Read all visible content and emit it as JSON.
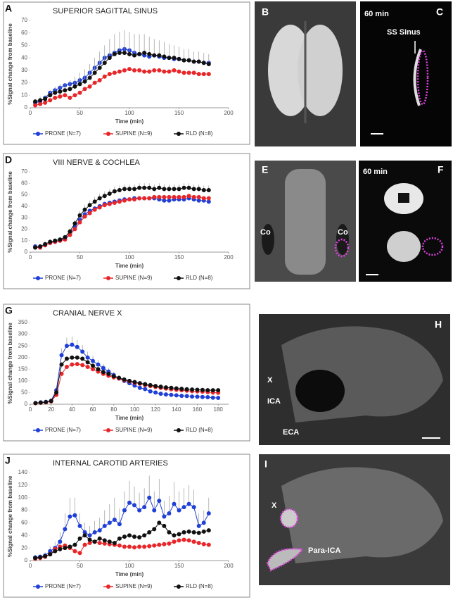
{
  "chart_data": [
    {
      "type": "line",
      "panel": "A",
      "title": "SUPERIOR SAGITTAL SINUS",
      "x_label": "Time (min)",
      "y_label": "%Signal change from baseline",
      "xlim": [
        0,
        200
      ],
      "xticks": [
        0,
        50,
        100,
        150,
        200
      ],
      "ylim": [
        0,
        70
      ],
      "yticks": [
        0,
        10,
        20,
        30,
        40,
        50,
        60,
        70
      ],
      "grid": false,
      "x": [
        5,
        10,
        15,
        20,
        25,
        30,
        35,
        40,
        45,
        50,
        55,
        60,
        65,
        70,
        75,
        80,
        85,
        90,
        95,
        100,
        105,
        110,
        115,
        120,
        125,
        130,
        135,
        140,
        145,
        150,
        155,
        160,
        165,
        170,
        175,
        180
      ],
      "series": [
        {
          "name": "PRONE (N=7)",
          "color": "#1f3fd6",
          "values": [
            4,
            5,
            8,
            12,
            14,
            16,
            18,
            19,
            20,
            22,
            24,
            28,
            32,
            36,
            40,
            42,
            44,
            46,
            47,
            46,
            44,
            43,
            42,
            41,
            42,
            41,
            40,
            40,
            39,
            39,
            38,
            38,
            37,
            37,
            36,
            36
          ]
        },
        {
          "name": "SUPINE (N=9)",
          "color": "#e8262a",
          "values": [
            2,
            3,
            4,
            6,
            8,
            9,
            10,
            8,
            10,
            12,
            15,
            17,
            20,
            22,
            25,
            27,
            28,
            29,
            30,
            31,
            30,
            30,
            29,
            29,
            30,
            30,
            29,
            29,
            30,
            29,
            28,
            28,
            28,
            27,
            27,
            27
          ]
        },
        {
          "name": "RLD (N=8)",
          "color": "#111111",
          "values": [
            5,
            6,
            7,
            10,
            12,
            13,
            14,
            15,
            17,
            19,
            21,
            24,
            28,
            32,
            36,
            40,
            43,
            44,
            44,
            43,
            42,
            43,
            44,
            43,
            42,
            42,
            41,
            40,
            40,
            39,
            38,
            38,
            37,
            37,
            36,
            35
          ],
          "errors": [
            2,
            3,
            3,
            4,
            5,
            6,
            6,
            7,
            8,
            9,
            10,
            11,
            12,
            13,
            14,
            15,
            16,
            17,
            18,
            18,
            17,
            16,
            15,
            14,
            13,
            12,
            12,
            11,
            10,
            10,
            9,
            9,
            8,
            8,
            8,
            8
          ]
        }
      ]
    },
    {
      "type": "line",
      "panel": "D",
      "title": "VIII NERVE & COCHLEA",
      "x_label": "Time (min)",
      "y_label": "%Signal change from baseline",
      "xlim": [
        0,
        200
      ],
      "xticks": [
        0,
        50,
        100,
        150,
        200
      ],
      "ylim": [
        0,
        70
      ],
      "yticks": [
        0,
        10,
        20,
        30,
        40,
        50,
        60,
        70
      ],
      "grid": false,
      "x": [
        5,
        10,
        15,
        20,
        25,
        30,
        35,
        40,
        45,
        50,
        55,
        60,
        65,
        70,
        75,
        80,
        85,
        90,
        95,
        100,
        105,
        110,
        115,
        120,
        125,
        130,
        135,
        140,
        145,
        150,
        155,
        160,
        165,
        170,
        175,
        180
      ],
      "series": [
        {
          "name": "PRONE (N=7)",
          "color": "#1f3fd6",
          "values": [
            5,
            4,
            6,
            8,
            9,
            10,
            12,
            16,
            22,
            28,
            33,
            36,
            38,
            40,
            42,
            43,
            44,
            45,
            46,
            46,
            47,
            47,
            47,
            47,
            47,
            46,
            45,
            45,
            46,
            46,
            46,
            47,
            46,
            45,
            45,
            44
          ]
        },
        {
          "name": "SUPINE (N=9)",
          "color": "#e8262a",
          "values": [
            4,
            4,
            6,
            8,
            9,
            10,
            11,
            15,
            20,
            26,
            31,
            34,
            37,
            39,
            41,
            42,
            43,
            44,
            45,
            46,
            46,
            47,
            47,
            47,
            48,
            48,
            48,
            48,
            48,
            48,
            48,
            49,
            48,
            48,
            47,
            47
          ]
        },
        {
          "name": "RLD (N=8)",
          "color": "#111111",
          "values": [
            4,
            5,
            7,
            9,
            10,
            11,
            13,
            18,
            25,
            32,
            37,
            41,
            44,
            47,
            49,
            51,
            53,
            54,
            55,
            55,
            55,
            56,
            56,
            56,
            55,
            56,
            55,
            55,
            55,
            55,
            56,
            56,
            55,
            55,
            54,
            54
          ],
          "errors": [
            1,
            1,
            1,
            2,
            2,
            2,
            2,
            3,
            3,
            4,
            4,
            4,
            4,
            4,
            4,
            4,
            4,
            4,
            4,
            4,
            4,
            4,
            4,
            4,
            4,
            4,
            4,
            4,
            4,
            4,
            4,
            4,
            4,
            4,
            4,
            4
          ]
        }
      ]
    },
    {
      "type": "line",
      "panel": "G",
      "title": "CRANIAL NERVE X",
      "x_label": "Time (min)",
      "y_label": "%Signal change from baseline",
      "xlim": [
        0,
        190
      ],
      "xticks": [
        0,
        20,
        40,
        60,
        80,
        100,
        120,
        140,
        160,
        180
      ],
      "ylim": [
        0,
        350
      ],
      "yticks": [
        0,
        50,
        100,
        150,
        200,
        250,
        300,
        350
      ],
      "grid": false,
      "x": [
        5,
        10,
        15,
        20,
        25,
        30,
        35,
        40,
        45,
        50,
        55,
        60,
        65,
        70,
        75,
        80,
        85,
        90,
        95,
        100,
        105,
        110,
        115,
        120,
        125,
        130,
        135,
        140,
        145,
        150,
        155,
        160,
        165,
        170,
        175,
        180
      ],
      "series": [
        {
          "name": "PRONE (N=7)",
          "color": "#1f3fd6",
          "values": [
            5,
            8,
            10,
            15,
            60,
            210,
            250,
            255,
            245,
            225,
            200,
            185,
            170,
            155,
            140,
            125,
            110,
            100,
            90,
            80,
            70,
            65,
            55,
            50,
            45,
            42,
            40,
            38,
            36,
            35,
            33,
            32,
            31,
            30,
            28,
            27
          ],
          "errors": [
            3,
            4,
            5,
            8,
            15,
            30,
            35,
            35,
            30,
            28,
            25,
            22,
            20,
            18,
            16,
            14,
            12,
            11,
            10,
            9,
            8,
            8,
            7,
            7,
            6,
            6,
            6,
            5,
            5,
            5,
            5,
            5,
            5,
            5,
            5,
            5
          ]
        },
        {
          "name": "SUPINE (N=9)",
          "color": "#e8262a",
          "values": [
            4,
            6,
            8,
            12,
            40,
            130,
            160,
            170,
            172,
            168,
            160,
            150,
            140,
            130,
            122,
            115,
            110,
            103,
            98,
            92,
            88,
            82,
            78,
            74,
            70,
            67,
            64,
            62,
            60,
            58,
            56,
            55,
            54,
            52,
            50,
            49
          ]
        },
        {
          "name": "RLD (N=8)",
          "color": "#111111",
          "values": [
            5,
            7,
            9,
            14,
            50,
            170,
            195,
            200,
            200,
            195,
            180,
            165,
            150,
            138,
            130,
            120,
            113,
            106,
            100,
            95,
            90,
            86,
            82,
            78,
            75,
            72,
            70,
            68,
            66,
            64,
            63,
            62,
            61,
            60,
            60,
            60
          ]
        }
      ]
    },
    {
      "type": "line",
      "panel": "J",
      "title": "INTERNAL CAROTID ARTERIES",
      "x_label": "Time (min)",
      "y_label": "%Signal change from baseline",
      "xlim": [
        0,
        200
      ],
      "xticks": [
        0,
        50,
        100,
        150,
        200
      ],
      "ylim": [
        0,
        140
      ],
      "yticks": [
        0,
        20,
        40,
        60,
        80,
        100,
        120,
        140
      ],
      "grid": false,
      "x": [
        5,
        10,
        15,
        20,
        25,
        30,
        35,
        40,
        45,
        50,
        55,
        60,
        65,
        70,
        75,
        80,
        85,
        90,
        95,
        100,
        105,
        110,
        115,
        120,
        125,
        130,
        135,
        140,
        145,
        150,
        155,
        160,
        165,
        170,
        175,
        180
      ],
      "series": [
        {
          "name": "PRONE (N=7)",
          "color": "#1f3fd6",
          "values": [
            5,
            6,
            8,
            15,
            20,
            30,
            50,
            70,
            72,
            55,
            45,
            40,
            45,
            48,
            55,
            60,
            65,
            58,
            80,
            92,
            88,
            80,
            85,
            100,
            80,
            95,
            70,
            75,
            90,
            80,
            85,
            90,
            85,
            55,
            60,
            75
          ],
          "errors": [
            3,
            4,
            5,
            8,
            10,
            15,
            25,
            30,
            28,
            20,
            15,
            15,
            18,
            20,
            25,
            30,
            35,
            25,
            30,
            35,
            30,
            28,
            30,
            35,
            30,
            35,
            25,
            28,
            35,
            30,
            30,
            30,
            28,
            20,
            20,
            25
          ]
        },
        {
          "name": "SUPINE (N=9)",
          "color": "#e8262a",
          "values": [
            3,
            4,
            6,
            10,
            18,
            22,
            24,
            20,
            15,
            12,
            25,
            28,
            30,
            28,
            27,
            26,
            25,
            24,
            22,
            22,
            21,
            22,
            22,
            23,
            24,
            25,
            26,
            27,
            30,
            32,
            33,
            32,
            30,
            28,
            26,
            25
          ]
        },
        {
          "name": "RLD (N=8)",
          "color": "#111111",
          "values": [
            4,
            5,
            7,
            10,
            15,
            18,
            20,
            22,
            25,
            35,
            40,
            33,
            30,
            35,
            32,
            30,
            28,
            35,
            38,
            40,
            38,
            37,
            40,
            45,
            50,
            60,
            55,
            45,
            40,
            42,
            45,
            46,
            45,
            44,
            46,
            48
          ]
        }
      ]
    }
  ],
  "images": [
    {
      "panel": "B"
    },
    {
      "panel": "C",
      "labels": [
        "60 min",
        "SS Sinus"
      ]
    },
    {
      "panel": "E",
      "labels": [
        "Co",
        "Co"
      ]
    },
    {
      "panel": "F",
      "labels": [
        "60 min"
      ]
    },
    {
      "panel": "H",
      "labels": [
        "X",
        "ICA",
        "ECA"
      ]
    },
    {
      "panel": "I",
      "labels": [
        "X",
        "Para-ICA"
      ]
    }
  ]
}
